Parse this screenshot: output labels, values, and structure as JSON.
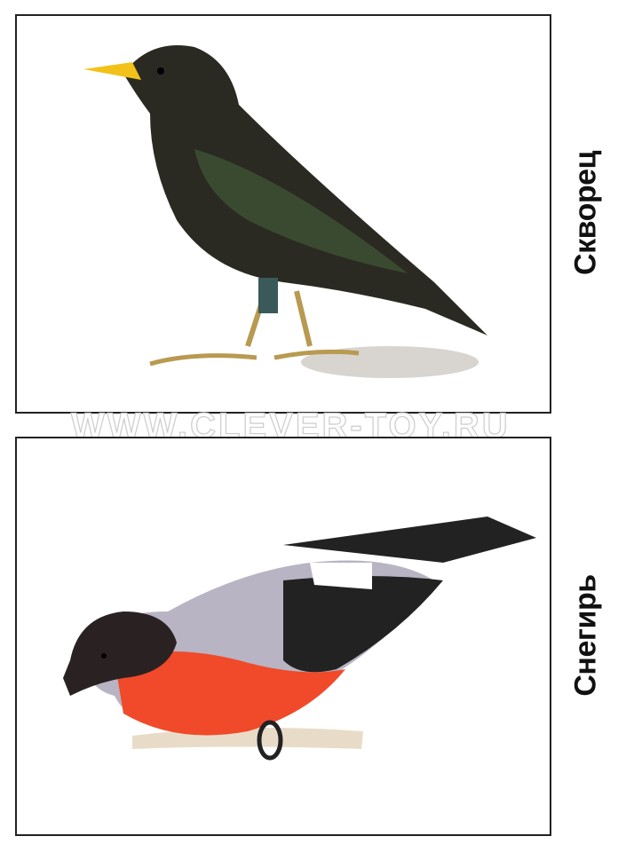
{
  "cards": [
    {
      "name": "Скворец",
      "bird": "starling"
    },
    {
      "name": "Снегирь",
      "bird": "bullfinch"
    }
  ],
  "watermark": "WWW.CLEVER-TOY.RU",
  "colors": {
    "border": "#222222",
    "starling_body": "#2a2a22",
    "starling_beak": "#f2c21a",
    "bullfinch_breast": "#f04a2a",
    "bullfinch_back": "#b8b4c4",
    "bullfinch_cap": "#2a2222"
  }
}
